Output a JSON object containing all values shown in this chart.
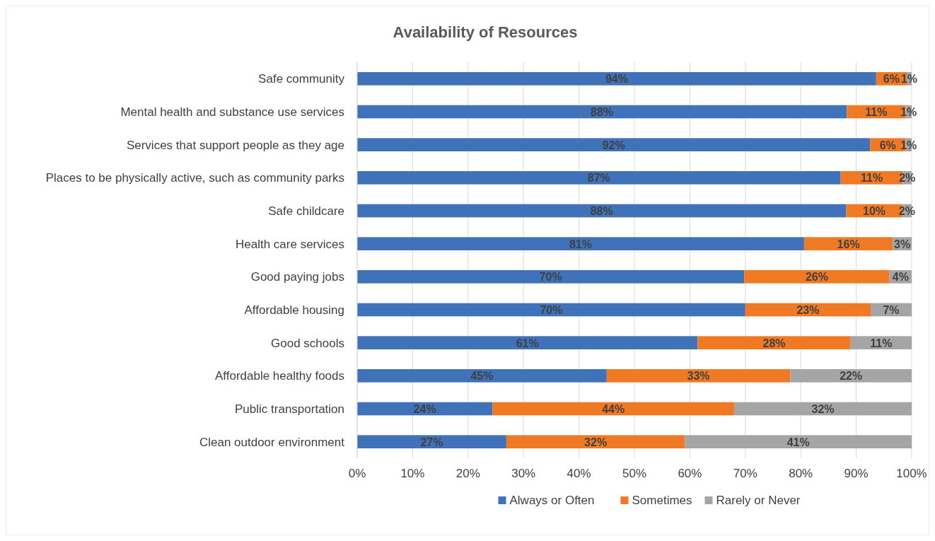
{
  "chart_data": {
    "type": "bar",
    "orientation": "horizontal",
    "stacked": true,
    "title": "Availability of Resources",
    "categories": [
      "Safe community",
      "Mental health and substance use services",
      "Services that support people as they age",
      "Places to be physically active, such as community parks",
      "Safe childcare",
      "Health care services",
      "Good paying jobs",
      "Affordable housing",
      "Good schools",
      "Affordable healthy foods",
      "Public transportation",
      "Clean outdoor environment"
    ],
    "series": [
      {
        "name": "Always or Often",
        "color": "#3f72b9",
        "values": [
          93.6,
          88.3,
          92.5,
          87.2,
          88.2,
          80.6,
          69.8,
          70.0,
          61.4,
          45.0,
          24.4,
          26.9
        ],
        "value_labels": [
          "94%",
          "88%",
          "92%",
          "87%",
          "88%",
          "81%",
          "70%",
          "70%",
          "61%",
          "45%",
          "24%",
          "27%"
        ]
      },
      {
        "name": "Sometimes",
        "color": "#f07a24",
        "values": [
          5.5,
          10.6,
          6.4,
          11.2,
          10.1,
          16.0,
          26.2,
          22.6,
          27.6,
          33.1,
          43.6,
          32.2
        ],
        "value_labels": [
          "6%",
          "11%",
          "6%",
          "11%",
          "10%",
          "16%",
          "26%",
          "23%",
          "28%",
          "33%",
          "44%",
          "32%"
        ]
      },
      {
        "name": "Rarely or Never",
        "color": "#a5a5a5",
        "values": [
          0.9,
          1.1,
          1.1,
          1.6,
          1.7,
          3.4,
          4.0,
          7.4,
          11.0,
          21.9,
          32.0,
          40.9
        ],
        "value_labels": [
          "1%",
          "1%",
          "1%",
          "2%",
          "2%",
          "3%",
          "4%",
          "7%",
          "11%",
          "22%",
          "32%",
          "41%"
        ]
      }
    ],
    "xlim": [
      0,
      100
    ],
    "xticks": [
      {
        "value": 0,
        "label": "0%"
      },
      {
        "value": 10,
        "label": "10%"
      },
      {
        "value": 20,
        "label": "20%"
      },
      {
        "value": 30,
        "label": "30%"
      },
      {
        "value": 40,
        "label": "40%"
      },
      {
        "value": 50,
        "label": "50%"
      },
      {
        "value": 60,
        "label": "60%"
      },
      {
        "value": 70,
        "label": "70%"
      },
      {
        "value": 80,
        "label": "80%"
      },
      {
        "value": 90,
        "label": "90%"
      },
      {
        "value": 100,
        "label": "100%"
      }
    ],
    "grid": "x",
    "legend": "bottom"
  }
}
